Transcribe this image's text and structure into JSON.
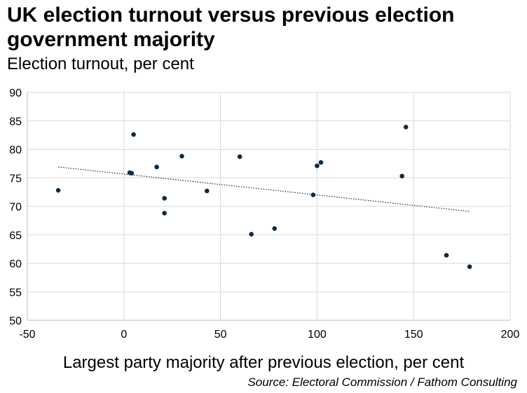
{
  "chart_data": {
    "type": "scatter",
    "title": "UK election turnout versus previous election government majority",
    "subtitle": "Election turnout, per cent",
    "xlabel": "Largest party majority after previous election, per cent",
    "ylabel": "",
    "source": "Source: Electoral Commission / Fathom Consulting",
    "xlim": [
      -50,
      200
    ],
    "ylim": [
      50,
      90
    ],
    "xticks": [
      -50,
      0,
      50,
      100,
      150,
      200
    ],
    "yticks": [
      50,
      55,
      60,
      65,
      70,
      75,
      80,
      85,
      90
    ],
    "grid": true,
    "point_color": "#0d2b45",
    "trend_color": "#0d2b45",
    "points": [
      {
        "x": -34,
        "y": 72.8
      },
      {
        "x": 3,
        "y": 75.9
      },
      {
        "x": 4,
        "y": 75.8
      },
      {
        "x": 5,
        "y": 82.6
      },
      {
        "x": 17,
        "y": 76.9
      },
      {
        "x": 21,
        "y": 71.4
      },
      {
        "x": 21,
        "y": 68.8
      },
      {
        "x": 30,
        "y": 78.8
      },
      {
        "x": 43,
        "y": 72.7
      },
      {
        "x": 60,
        "y": 78.7
      },
      {
        "x": 66,
        "y": 65.1
      },
      {
        "x": 78,
        "y": 66.1
      },
      {
        "x": 98,
        "y": 72.0
      },
      {
        "x": 100,
        "y": 77.1
      },
      {
        "x": 102,
        "y": 77.7
      },
      {
        "x": 144,
        "y": 75.3
      },
      {
        "x": 146,
        "y": 83.9
      },
      {
        "x": 167,
        "y": 61.4
      },
      {
        "x": 179,
        "y": 59.4
      }
    ],
    "trendline": {
      "x": [
        -34,
        179
      ],
      "y": [
        76.9,
        69.1
      ]
    }
  }
}
